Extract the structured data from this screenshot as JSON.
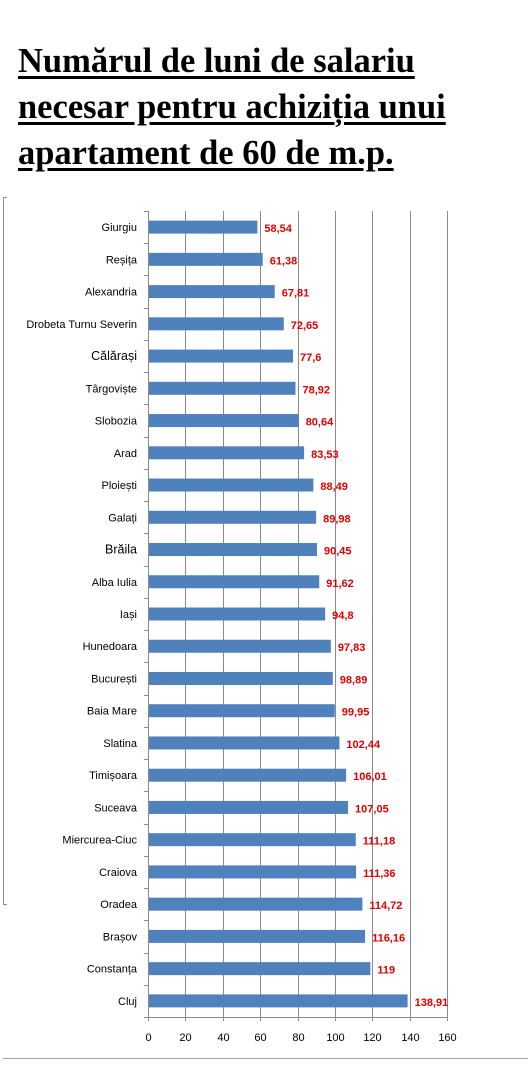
{
  "title": "Numărul de luni de salariu necesar pentru achiziția unui apartament de 60 de m.p.",
  "chart_data": {
    "type": "bar",
    "orientation": "horizontal",
    "title": "Numărul de luni de salariu necesar pentru achiziția unui apartament de 60 de m.p.",
    "xlabel": "",
    "ylabel": "",
    "xlim": [
      0,
      160
    ],
    "ticks": [
      "0",
      "20",
      "40",
      "60",
      "80",
      "100",
      "120",
      "140",
      "160"
    ],
    "grid": true,
    "legend": "none",
    "bar_color": "#4f81bd",
    "label_color": "#e00000",
    "categories": [
      "Giurgiu",
      "Reșița",
      "Alexandria",
      "Drobeta Turnu Severin",
      "Călărași",
      "Târgoviște",
      "Slobozia",
      "Arad",
      "Ploiești",
      "Galați",
      "Brăila",
      "Alba Iulia",
      "Iași",
      "Hunedoara",
      "București",
      "Baia Mare",
      "Slatina",
      "Timișoara",
      "Suceava",
      "Miercurea-Ciuc",
      "Craiova",
      "Oradea",
      "Brașov",
      "Constanța",
      "Cluj"
    ],
    "values": [
      58.54,
      61.38,
      67.81,
      72.65,
      77.6,
      78.92,
      80.64,
      83.53,
      88.49,
      89.98,
      90.45,
      91.62,
      94.8,
      97.83,
      98.89,
      99.95,
      102.44,
      106.01,
      107.05,
      111.18,
      111.36,
      114.72,
      116.16,
      119,
      138.91
    ],
    "value_labels": [
      "58,54",
      "61,38",
      "67,81",
      "72,65",
      "77,6",
      "78,92",
      "80,64",
      "83,53",
      "88,49",
      "89,98",
      "90,45",
      "91,62",
      "94,8",
      "97,83",
      "98,89",
      "99,95",
      "102,44",
      "106,01",
      "107,05",
      "111,18",
      "111,36",
      "114,72",
      "116,16",
      "119",
      "138,91"
    ],
    "larger_label_categories": [
      "Călărași",
      "Brăila"
    ]
  }
}
